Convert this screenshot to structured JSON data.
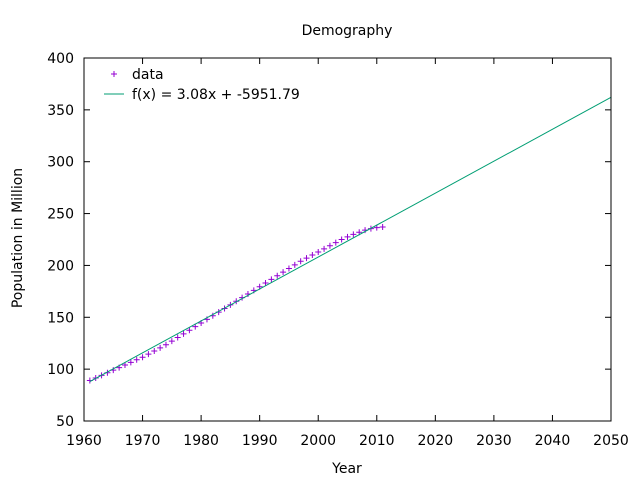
{
  "chart_data": {
    "type": "scatter",
    "title": "Demography",
    "xlabel": "Year",
    "ylabel": "Population in Million",
    "xlim": [
      1960,
      2050
    ],
    "ylim": [
      50,
      400
    ],
    "xticks": [
      1960,
      1970,
      1980,
      1990,
      2000,
      2010,
      2020,
      2030,
      2040,
      2050
    ],
    "yticks": [
      50,
      100,
      150,
      200,
      250,
      300,
      350,
      400
    ],
    "grid": false,
    "legend_position": "top-left",
    "series": [
      {
        "name": "data",
        "kind": "points",
        "marker": "plus",
        "color": "#9400d3",
        "x": [
          1961,
          1962,
          1963,
          1964,
          1965,
          1966,
          1967,
          1968,
          1969,
          1970,
          1971,
          1972,
          1973,
          1974,
          1975,
          1976,
          1977,
          1978,
          1979,
          1980,
          1981,
          1982,
          1983,
          1984,
          1985,
          1986,
          1987,
          1988,
          1989,
          1990,
          1991,
          1992,
          1993,
          1994,
          1995,
          1996,
          1997,
          1998,
          1999,
          2000,
          2001,
          2002,
          2003,
          2004,
          2005,
          2006,
          2007,
          2008,
          2009,
          2010,
          2011
        ],
        "y": [
          89.0,
          91.5,
          94.0,
          96.5,
          99.0,
          101.5,
          104.0,
          106.5,
          109.0,
          111.5,
          114.5,
          117.5,
          120.5,
          123.5,
          127.0,
          130.5,
          134.0,
          137.5,
          141.0,
          144.5,
          148.0,
          151.5,
          155.0,
          158.5,
          162.0,
          165.5,
          169.0,
          172.5,
          176.0,
          179.5,
          183.0,
          186.5,
          190.0,
          193.5,
          197.0,
          200.5,
          204.0,
          207.0,
          210.0,
          213.0,
          216.0,
          219.0,
          222.0,
          225.0,
          227.5,
          230.0,
          232.0,
          234.0,
          235.5,
          236.5,
          237.0
        ]
      },
      {
        "name": "f(x) = 3.08x + -5951.79",
        "kind": "line",
        "color": "#009e73",
        "x": [
          1961,
          2050
        ],
        "y": [
          87.97,
          362.09
        ]
      }
    ]
  }
}
